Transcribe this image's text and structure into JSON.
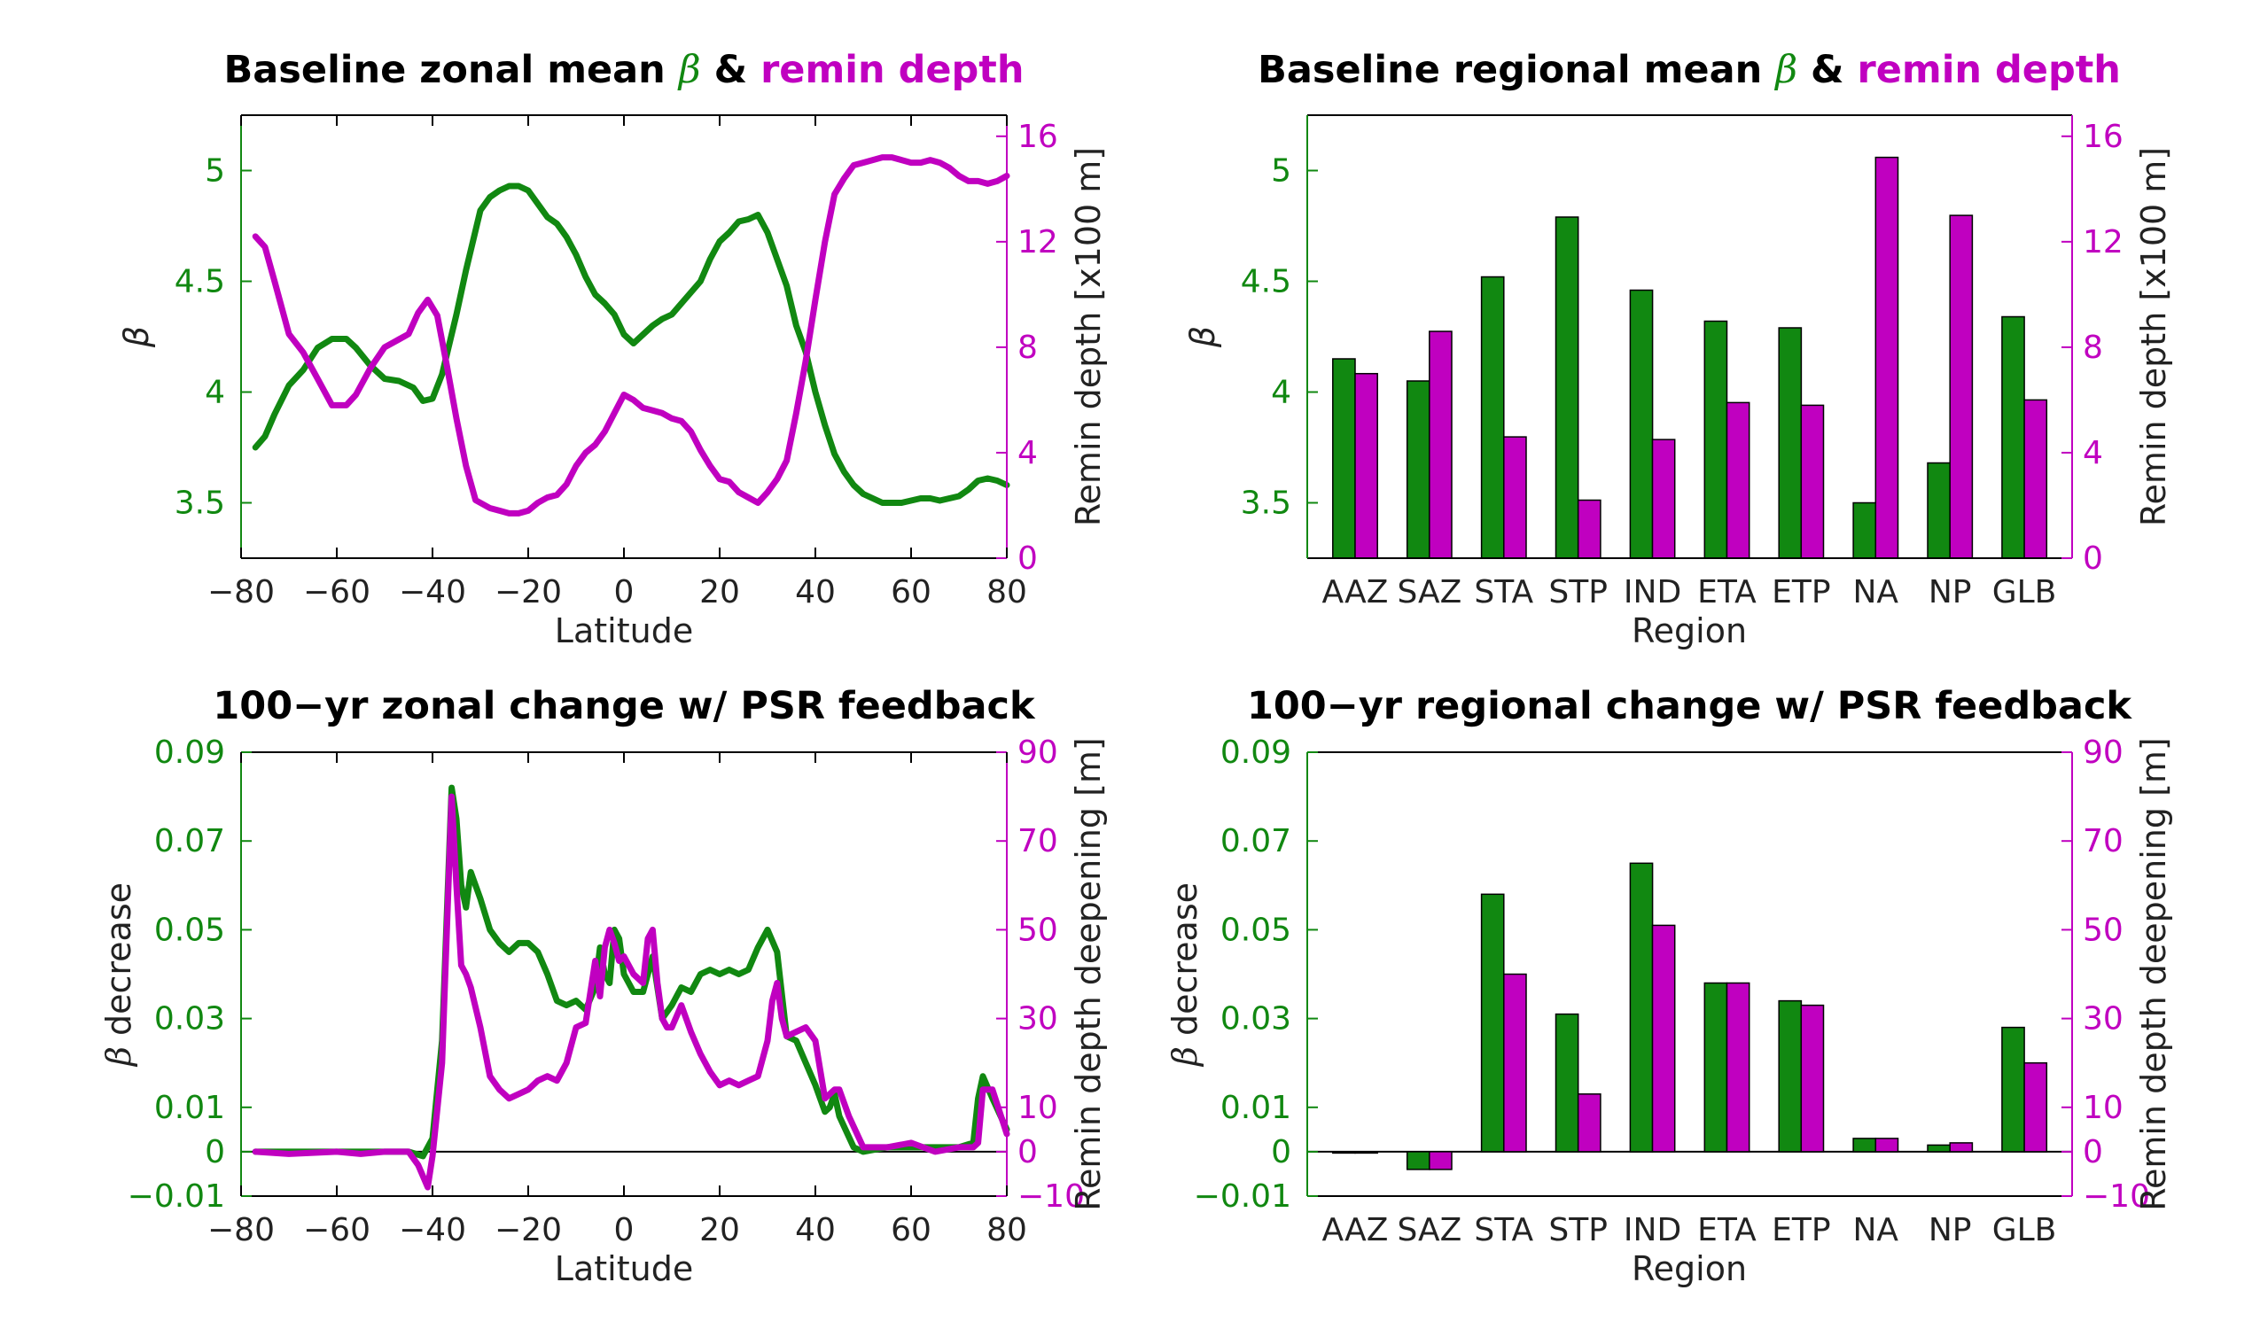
{
  "colors": {
    "green": "#118811",
    "magenta": "#c000c0",
    "axis": "#000000",
    "text": "#222222"
  },
  "chart_data": [
    {
      "id": "p1",
      "type": "line",
      "title_parts": [
        {
          "text": "Baseline zonal mean ",
          "color": "#000000"
        },
        {
          "text": "β",
          "color": "#118811",
          "italic": true
        },
        {
          "text": " & ",
          "color": "#000000"
        },
        {
          "text": "remin depth",
          "color": "#c000c0"
        }
      ],
      "xlabel": "Latitude",
      "ylabel_left": "β",
      "ylabel_right": "Remin depth [x100 m]",
      "xlim": [
        -80,
        80
      ],
      "xticks": [
        "−80",
        "−60",
        "−40",
        "−20",
        "0",
        "20",
        "40",
        "60",
        "80"
      ],
      "xtick_values": [
        -80,
        -60,
        -40,
        -20,
        0,
        20,
        40,
        60,
        80
      ],
      "ylim_left": [
        3.25,
        5.25
      ],
      "yticks_left": [
        "3.5",
        "4",
        "4.5",
        "5"
      ],
      "ytick_values_left": [
        3.5,
        4,
        4.5,
        5
      ],
      "ylim_right": [
        0,
        16.8
      ],
      "yticks_right": [
        "0",
        "4",
        "8",
        "12",
        "16"
      ],
      "ytick_values_right": [
        0,
        4,
        8,
        12,
        16
      ],
      "series": [
        {
          "axis": "left",
          "color": "#118811",
          "x": [
            -77,
            -75,
            -73,
            -70,
            -67,
            -64,
            -61,
            -58,
            -56,
            -53,
            -50,
            -47,
            -44,
            -42,
            -40,
            -38,
            -35,
            -33,
            -30,
            -28,
            -26,
            -24,
            -22,
            -20,
            -18,
            -16,
            -14,
            -12,
            -10,
            -8,
            -6,
            -4,
            -2,
            0,
            2,
            4,
            6,
            8,
            10,
            12,
            14,
            16,
            18,
            20,
            22,
            24,
            26,
            28,
            30,
            32,
            34,
            36,
            38,
            40,
            42,
            44,
            46,
            48,
            50,
            52,
            54,
            56,
            58,
            60,
            62,
            64,
            66,
            68,
            70,
            72,
            74,
            76,
            78,
            80
          ],
          "y": [
            3.75,
            3.8,
            3.9,
            4.03,
            4.1,
            4.2,
            4.24,
            4.24,
            4.2,
            4.12,
            4.06,
            4.05,
            4.02,
            3.96,
            3.97,
            4.08,
            4.35,
            4.55,
            4.82,
            4.88,
            4.91,
            4.93,
            4.93,
            4.91,
            4.85,
            4.79,
            4.76,
            4.7,
            4.62,
            4.52,
            4.44,
            4.4,
            4.35,
            4.26,
            4.22,
            4.26,
            4.3,
            4.33,
            4.35,
            4.4,
            4.45,
            4.5,
            4.6,
            4.68,
            4.72,
            4.77,
            4.78,
            4.8,
            4.72,
            4.6,
            4.48,
            4.3,
            4.18,
            4.0,
            3.85,
            3.72,
            3.64,
            3.58,
            3.54,
            3.52,
            3.5,
            3.5,
            3.5,
            3.51,
            3.52,
            3.52,
            3.51,
            3.52,
            3.53,
            3.56,
            3.6,
            3.61,
            3.6,
            3.58
          ]
        },
        {
          "axis": "right",
          "color": "#c000c0",
          "x": [
            -77,
            -75,
            -73,
            -70,
            -67,
            -64,
            -61,
            -58,
            -56,
            -53,
            -50,
            -47,
            -45,
            -43,
            -41,
            -39,
            -37,
            -35,
            -33,
            -31,
            -28,
            -26,
            -24,
            -22,
            -20,
            -18,
            -16,
            -14,
            -12,
            -10,
            -8,
            -6,
            -4,
            -2,
            0,
            2,
            4,
            6,
            8,
            10,
            12,
            14,
            16,
            18,
            20,
            22,
            24,
            26,
            28,
            30,
            32,
            34,
            36,
            38,
            40,
            42,
            44,
            46,
            48,
            50,
            52,
            54,
            56,
            58,
            60,
            62,
            64,
            66,
            68,
            70,
            72,
            74,
            76,
            78,
            80
          ],
          "y": [
            12.2,
            11.8,
            10.5,
            8.5,
            7.8,
            6.8,
            5.8,
            5.8,
            6.2,
            7.2,
            8.0,
            8.3,
            8.5,
            9.3,
            9.8,
            9.2,
            7.3,
            5.3,
            3.5,
            2.2,
            1.9,
            1.8,
            1.7,
            1.7,
            1.8,
            2.1,
            2.3,
            2.4,
            2.8,
            3.5,
            4.0,
            4.3,
            4.8,
            5.5,
            6.2,
            6.0,
            5.7,
            5.6,
            5.5,
            5.3,
            5.2,
            4.8,
            4.1,
            3.5,
            3.0,
            2.9,
            2.5,
            2.3,
            2.1,
            2.5,
            3.0,
            3.7,
            5.5,
            7.5,
            9.8,
            12.0,
            13.8,
            14.4,
            14.9,
            15.0,
            15.1,
            15.2,
            15.2,
            15.1,
            15.0,
            15.0,
            15.1,
            15.0,
            14.8,
            14.5,
            14.3,
            14.3,
            14.2,
            14.3,
            14.5
          ]
        }
      ]
    },
    {
      "id": "p2",
      "type": "bar",
      "title_parts": [
        {
          "text": "Baseline regional mean ",
          "color": "#000000"
        },
        {
          "text": "β",
          "color": "#118811",
          "italic": true
        },
        {
          "text": " & ",
          "color": "#000000"
        },
        {
          "text": "remin depth",
          "color": "#c000c0"
        }
      ],
      "xlabel": "Region",
      "ylabel_left": "β",
      "ylabel_right": "Remin depth [x100 m]",
      "categories": [
        "AAZ",
        "SAZ",
        "STA",
        "STP",
        "IND",
        "ETA",
        "ETP",
        "NA",
        "NP",
        "GLB"
      ],
      "ylim_left": [
        3.25,
        5.25
      ],
      "yticks_left": [
        "3.5",
        "4",
        "4.5",
        "5"
      ],
      "ytick_values_left": [
        3.5,
        4,
        4.5,
        5
      ],
      "ylim_right": [
        0,
        16.8
      ],
      "yticks_right": [
        "0",
        "4",
        "8",
        "12",
        "16"
      ],
      "ytick_values_right": [
        0,
        4,
        8,
        12,
        16
      ],
      "series": [
        {
          "axis": "left",
          "color": "#118811",
          "values": [
            4.15,
            4.05,
            4.52,
            4.79,
            4.46,
            4.32,
            4.29,
            3.5,
            3.68,
            4.34
          ]
        },
        {
          "axis": "right",
          "color": "#c000c0",
          "values": [
            7.0,
            8.6,
            4.6,
            2.2,
            4.5,
            5.9,
            5.8,
            15.2,
            13.0,
            6.0
          ]
        }
      ]
    },
    {
      "id": "p3",
      "type": "line",
      "title_parts": [
        {
          "text": "100−yr zonal change w/ PSR feedback",
          "color": "#000000"
        }
      ],
      "xlabel": "Latitude",
      "ylabel_left_prefix": "β",
      "ylabel_left_suffix": " decrease",
      "ylabel_right": "Remin depth deepening [m]",
      "xlim": [
        -80,
        80
      ],
      "xticks": [
        "−80",
        "−60",
        "−40",
        "−20",
        "0",
        "20",
        "40",
        "60",
        "80"
      ],
      "xtick_values": [
        -80,
        -60,
        -40,
        -20,
        0,
        20,
        40,
        60,
        80
      ],
      "ylim_left": [
        -0.01,
        0.09
      ],
      "yticks_left": [
        "−0.01",
        "0",
        "0.01",
        "0.03",
        "0.05",
        "0.07",
        "0.09"
      ],
      "ytick_values_left": [
        -0.01,
        0,
        0.01,
        0.03,
        0.05,
        0.07,
        0.09
      ],
      "ylim_right": [
        -10,
        90
      ],
      "yticks_right": [
        "−10",
        "0",
        "10",
        "30",
        "50",
        "70",
        "90"
      ],
      "ytick_values_right": [
        -10,
        0,
        10,
        30,
        50,
        70,
        90
      ],
      "series": [
        {
          "axis": "left",
          "color": "#118811",
          "x": [
            -77,
            -70,
            -60,
            -55,
            -50,
            -45,
            -42,
            -40,
            -38,
            -36,
            -35,
            -34,
            -33,
            -32,
            -30,
            -28,
            -26,
            -24,
            -22,
            -20,
            -18,
            -16,
            -14,
            -12,
            -10,
            -8,
            -6,
            -5,
            -4,
            -3,
            -2,
            -1,
            0,
            2,
            4,
            6,
            8,
            10,
            12,
            14,
            16,
            18,
            20,
            22,
            24,
            26,
            28,
            30,
            32,
            34,
            36,
            38,
            40,
            42,
            43,
            44,
            45,
            48,
            50,
            55,
            60,
            65,
            70,
            73,
            74,
            75,
            77,
            80
          ],
          "y": [
            0,
            0,
            0,
            0,
            0,
            0,
            -0.001,
            0.003,
            0.025,
            0.082,
            0.075,
            0.06,
            0.055,
            0.063,
            0.057,
            0.05,
            0.047,
            0.045,
            0.047,
            0.047,
            0.045,
            0.04,
            0.034,
            0.033,
            0.034,
            0.032,
            0.037,
            0.046,
            0.04,
            0.038,
            0.05,
            0.048,
            0.04,
            0.036,
            0.036,
            0.044,
            0.03,
            0.033,
            0.037,
            0.036,
            0.04,
            0.041,
            0.04,
            0.041,
            0.04,
            0.041,
            0.046,
            0.05,
            0.045,
            0.026,
            0.025,
            0.02,
            0.015,
            0.009,
            0.01,
            0.013,
            0.008,
            0.001,
            0,
            0.001,
            0.001,
            0.001,
            0.001,
            0.002,
            0.012,
            0.017,
            0.012,
            0.005
          ]
        },
        {
          "axis": "right",
          "color": "#c000c0",
          "x": [
            -77,
            -70,
            -60,
            -55,
            -50,
            -45,
            -43,
            -41,
            -40,
            -38,
            -36,
            -35,
            -34,
            -33,
            -32,
            -30,
            -28,
            -26,
            -24,
            -22,
            -20,
            -18,
            -16,
            -14,
            -12,
            -10,
            -8,
            -6,
            -5,
            -4,
            -3,
            -2,
            -1,
            0,
            2,
            4,
            5,
            6,
            7,
            8,
            9,
            10,
            12,
            14,
            16,
            18,
            20,
            22,
            24,
            26,
            28,
            30,
            31,
            32,
            33,
            34,
            36,
            38,
            40,
            42,
            43,
            44,
            45,
            47,
            50,
            55,
            60,
            65,
            70,
            73,
            74,
            75,
            77,
            80
          ],
          "y": [
            0,
            -0.5,
            0,
            -0.5,
            0,
            0,
            -3,
            -8,
            -1,
            20,
            80,
            60,
            42,
            40,
            37,
            28,
            17,
            14,
            12,
            13,
            14,
            16,
            17,
            16,
            20,
            28,
            29,
            43,
            35,
            46,
            50,
            47,
            43,
            44,
            40,
            38,
            48,
            50,
            38,
            30,
            28,
            28,
            33,
            27,
            22,
            18,
            15,
            16,
            15,
            16,
            17,
            25,
            34,
            38,
            30,
            26,
            27,
            28,
            25,
            12,
            13,
            14,
            14,
            8,
            1,
            1,
            2,
            0,
            1,
            1,
            2,
            14,
            14,
            4
          ]
        }
      ]
    },
    {
      "id": "p4",
      "type": "bar",
      "title_parts": [
        {
          "text": "100−yr regional change w/ PSR feedback",
          "color": "#000000"
        }
      ],
      "xlabel": "Region",
      "ylabel_left_prefix": "β",
      "ylabel_left_suffix": " decrease",
      "ylabel_right": "Remin depth deepening [m]",
      "categories": [
        "AAZ",
        "SAZ",
        "STA",
        "STP",
        "IND",
        "ETA",
        "ETP",
        "NA",
        "NP",
        "GLB"
      ],
      "ylim_left": [
        -0.01,
        0.09
      ],
      "yticks_left": [
        "−0.01",
        "0",
        "0.01",
        "0.03",
        "0.05",
        "0.07",
        "0.09"
      ],
      "ytick_values_left": [
        -0.01,
        0,
        0.01,
        0.03,
        0.05,
        0.07,
        0.09
      ],
      "ylim_right": [
        -10,
        90
      ],
      "yticks_right": [
        "−10",
        "0",
        "10",
        "30",
        "50",
        "70",
        "90"
      ],
      "ytick_values_right": [
        -10,
        0,
        10,
        30,
        50,
        70,
        90
      ],
      "series": [
        {
          "axis": "left",
          "color": "#118811",
          "values": [
            0.0,
            -0.004,
            0.058,
            0.031,
            0.065,
            0.038,
            0.034,
            0.003,
            0.0015,
            0.028
          ]
        },
        {
          "axis": "right",
          "color": "#c000c0",
          "values": [
            0,
            -4,
            40,
            13,
            51,
            38,
            33,
            3,
            2,
            20
          ]
        }
      ]
    }
  ]
}
